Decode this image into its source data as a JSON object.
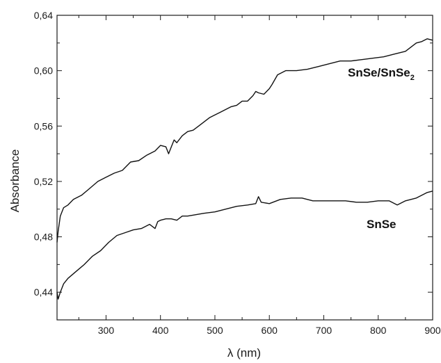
{
  "chart_data": {
    "type": "line",
    "xlabel": "λ (nm)",
    "ylabel": "Absorbance",
    "xlim": [
      210,
      900
    ],
    "ylim": [
      0.42,
      0.64
    ],
    "x_ticks": [
      300,
      400,
      500,
      600,
      700,
      800,
      900
    ],
    "y_ticks": [
      0.44,
      0.48,
      0.52,
      0.56,
      0.6,
      0.64
    ],
    "x_tick_labels": [
      "300",
      "400",
      "500",
      "600",
      "700",
      "800",
      "900"
    ],
    "y_tick_labels": [
      "0,44",
      "0,48",
      "0,52",
      "0,56",
      "0,60",
      "0,64"
    ],
    "x_minor_step": 50,
    "y_minor_step": 0.02,
    "grid": false,
    "legend": "none",
    "line_color": "#111111",
    "series": [
      {
        "name": "SnSe/SnSe2",
        "label_text": "SnSe/SnSe",
        "label_subscript": "2",
        "x": [
          210,
          212,
          216,
          222,
          230,
          240,
          255,
          270,
          285,
          300,
          315,
          330,
          345,
          360,
          375,
          390,
          400,
          410,
          415,
          420,
          425,
          430,
          440,
          450,
          460,
          470,
          480,
          490,
          500,
          510,
          520,
          530,
          540,
          550,
          560,
          570,
          575,
          580,
          590,
          600,
          605,
          615,
          630,
          650,
          670,
          690,
          710,
          730,
          750,
          770,
          790,
          810,
          830,
          850,
          870,
          880,
          890,
          900
        ],
        "y": [
          0.476,
          0.484,
          0.495,
          0.501,
          0.503,
          0.507,
          0.51,
          0.515,
          0.52,
          0.523,
          0.526,
          0.528,
          0.534,
          0.535,
          0.539,
          0.542,
          0.546,
          0.545,
          0.54,
          0.545,
          0.55,
          0.548,
          0.553,
          0.556,
          0.557,
          0.56,
          0.563,
          0.566,
          0.568,
          0.57,
          0.572,
          0.574,
          0.575,
          0.578,
          0.578,
          0.582,
          0.585,
          0.584,
          0.583,
          0.587,
          0.59,
          0.597,
          0.6,
          0.6,
          0.601,
          0.603,
          0.605,
          0.607,
          0.607,
          0.608,
          0.609,
          0.61,
          0.612,
          0.614,
          0.62,
          0.621,
          0.623,
          0.622
        ]
      },
      {
        "name": "SnSe",
        "label_text": "SnSe",
        "label_subscript": "",
        "x": [
          210,
          212,
          216,
          222,
          230,
          245,
          260,
          275,
          290,
          305,
          320,
          335,
          350,
          365,
          380,
          390,
          395,
          400,
          410,
          420,
          430,
          440,
          450,
          465,
          480,
          500,
          520,
          540,
          560,
          575,
          580,
          585,
          600,
          620,
          640,
          660,
          680,
          700,
          720,
          740,
          760,
          780,
          800,
          820,
          835,
          850,
          870,
          890,
          900
        ],
        "y": [
          0.44,
          0.435,
          0.44,
          0.446,
          0.45,
          0.455,
          0.46,
          0.466,
          0.47,
          0.476,
          0.481,
          0.483,
          0.485,
          0.486,
          0.489,
          0.486,
          0.491,
          0.492,
          0.493,
          0.493,
          0.492,
          0.495,
          0.495,
          0.496,
          0.497,
          0.498,
          0.5,
          0.502,
          0.503,
          0.504,
          0.509,
          0.505,
          0.504,
          0.507,
          0.508,
          0.508,
          0.506,
          0.506,
          0.506,
          0.506,
          0.505,
          0.505,
          0.506,
          0.506,
          0.503,
          0.506,
          0.508,
          0.512,
          0.513
        ]
      }
    ]
  }
}
